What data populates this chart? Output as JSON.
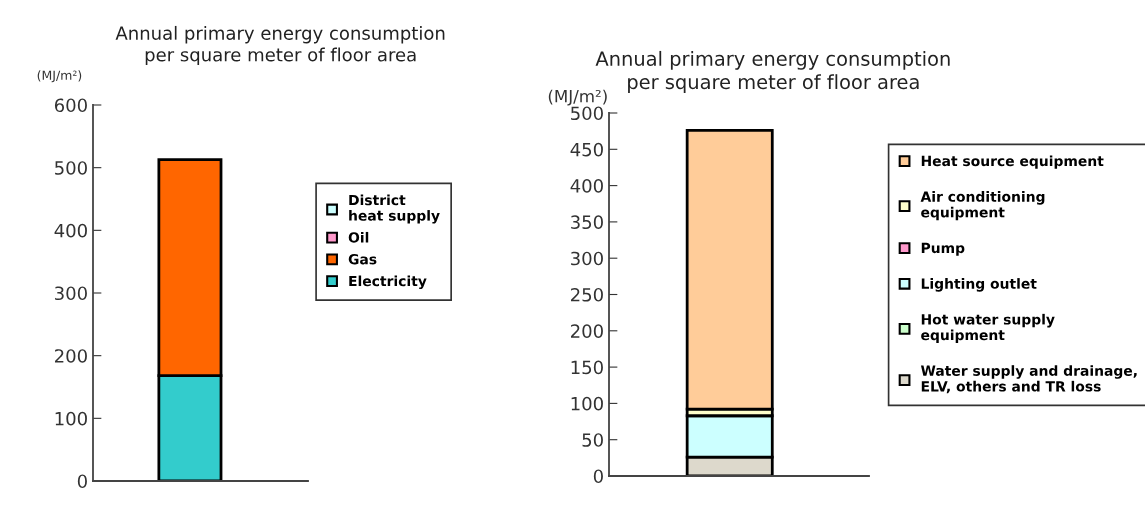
{
  "chart_data": [
    {
      "type": "bar",
      "title": "Annual primary energy consumption\nper square meter of floor area",
      "ylabel": "(MJ/m²)",
      "categories": [
        null
      ],
      "stacked": true,
      "ylim": [
        0,
        600
      ],
      "yticks": [
        0,
        100,
        200,
        300,
        400,
        500,
        600
      ],
      "grid": false,
      "legend": "right",
      "series": [
        {
          "name": "Electricity",
          "color": "#33cccc",
          "values": [
            168
          ]
        },
        {
          "name": "Gas",
          "color": "#ff6600",
          "values": [
            345
          ]
        },
        {
          "name": "Oil",
          "color": "#ff99cc",
          "values": [
            null
          ]
        },
        {
          "name": "District\nheat supply",
          "color": "#ccffff",
          "values": [
            null
          ]
        }
      ]
    },
    {
      "type": "bar",
      "title": "Annual primary energy consumption\nper square meter of floor area",
      "ylabel": "(MJ/m²)",
      "categories": [
        null
      ],
      "stacked": true,
      "ylim": [
        0,
        500
      ],
      "yticks": [
        0,
        50,
        100,
        150,
        200,
        250,
        300,
        350,
        400,
        450,
        500
      ],
      "grid": false,
      "legend": "right",
      "series": [
        {
          "name": "Water supply and drainage,\nELV, others and TR loss",
          "color": "#ddd9cc",
          "values": [
            26
          ]
        },
        {
          "name": "Hot water supply\nequipment",
          "color": "#ccffcc",
          "values": [
            null
          ]
        },
        {
          "name": "Lighting outlet",
          "color": "#ccffff",
          "values": [
            57
          ]
        },
        {
          "name": "Pump",
          "color": "#ff99cc",
          "values": [
            null
          ]
        },
        {
          "name": "Air conditioning\nequipment",
          "color": "#ffffcc",
          "values": [
            9
          ]
        },
        {
          "name": "Heat source equipment",
          "color": "#ffcc99",
          "values": [
            384
          ]
        }
      ]
    }
  ]
}
